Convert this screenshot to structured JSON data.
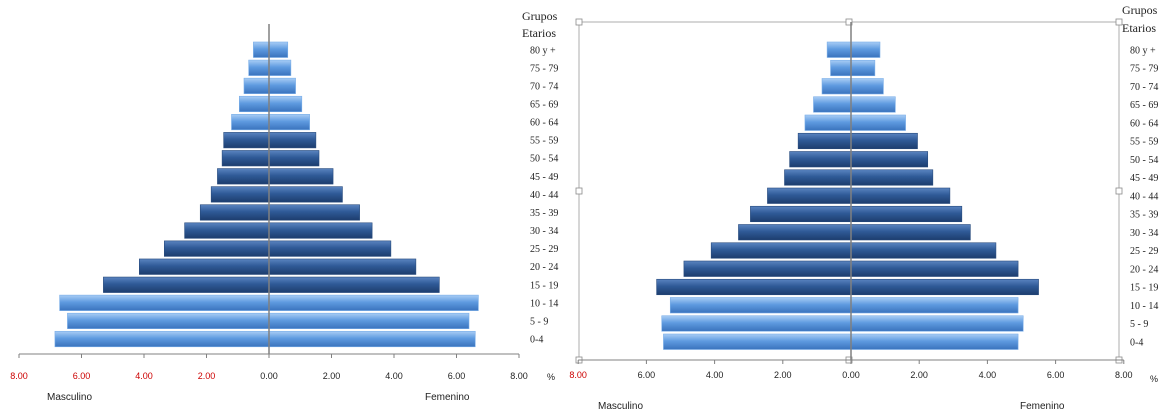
{
  "chart_data": [
    {
      "type": "bar",
      "orientation": "horizontal-population-pyramid",
      "categories": [
        "0-4",
        "5 - 9",
        "10 - 14",
        "15 - 19",
        "20 - 24",
        "25 - 29",
        "30 - 34",
        "35 - 39",
        "40 - 44",
        "45 - 49",
        "50 - 54",
        "55 - 59",
        "60 - 64",
        "65 - 69",
        "70 - 74",
        "75 - 79",
        "80 y +"
      ],
      "series": [
        {
          "name": "Masculino",
          "values": [
            6.85,
            6.45,
            6.7,
            5.3,
            4.15,
            3.35,
            2.7,
            2.2,
            1.85,
            1.65,
            1.5,
            1.45,
            1.2,
            0.95,
            0.8,
            0.65,
            0.5
          ]
        },
        {
          "name": "Femenino",
          "values": [
            6.6,
            6.4,
            6.7,
            5.45,
            4.7,
            3.9,
            3.3,
            2.9,
            2.35,
            2.05,
            1.6,
            1.5,
            1.3,
            1.05,
            0.85,
            0.7,
            0.6
          ]
        }
      ],
      "category_header": [
        "Grupos",
        "Etarios"
      ],
      "ticks": [
        "8.00",
        "6.00",
        "4.00",
        "2.00",
        "0.00",
        "2.00",
        "4.00",
        "6.00",
        "8.00"
      ],
      "unit_label": "%",
      "xlim": [
        -8,
        8
      ],
      "legend_placement": "bottom",
      "grid": false,
      "colors": {
        "dark_bar": "#2e5690",
        "light_bar": "#5d97dd",
        "axis": "#808080",
        "red_tick": "#cc0000"
      }
    },
    {
      "type": "bar",
      "orientation": "horizontal-population-pyramid",
      "categories": [
        "0-4",
        "5 - 9",
        "10 - 14",
        "15 - 19",
        "20 - 24",
        "25 - 29",
        "30 - 34",
        "35 - 39",
        "40 - 44",
        "45 - 49",
        "50 - 54",
        "55 - 59",
        "60 - 64",
        "65 - 69",
        "70 - 74",
        "75 - 79",
        "80 y +"
      ],
      "series": [
        {
          "name": "Masculino",
          "values": [
            5.5,
            5.55,
            5.3,
            5.7,
            4.9,
            4.1,
            3.3,
            2.95,
            2.45,
            1.95,
            1.8,
            1.55,
            1.35,
            1.1,
            0.85,
            0.6,
            0.7
          ]
        },
        {
          "name": "Femenino",
          "values": [
            4.9,
            5.05,
            4.9,
            5.5,
            4.9,
            4.25,
            3.5,
            3.25,
            2.9,
            2.4,
            2.25,
            1.95,
            1.6,
            1.3,
            0.95,
            0.7,
            0.85
          ]
        }
      ],
      "category_header": [
        "Grupos",
        "Etarios"
      ],
      "ticks": [
        "8.00",
        "6.00",
        "4.00",
        "2.00",
        "0.00",
        "2.00",
        "4.00",
        "6.00",
        "8.00"
      ],
      "unit_label": "%",
      "xlim": [
        -8,
        8
      ],
      "legend_placement": "bottom",
      "grid": false,
      "colors": {
        "dark_bar": "#2e5690",
        "light_bar": "#5d97dd",
        "axis": "#808080",
        "red_tick": "#cc0000"
      }
    }
  ]
}
